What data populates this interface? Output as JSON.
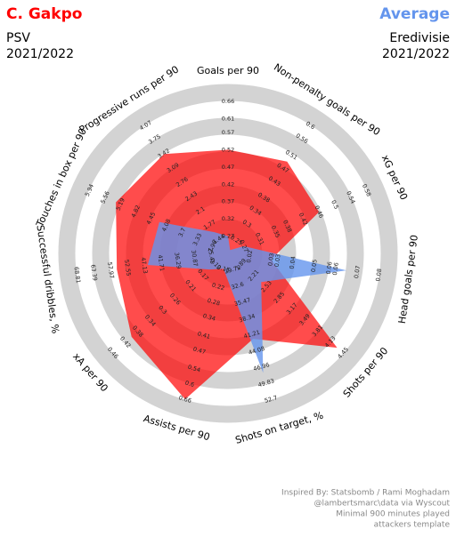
{
  "chart_data": {
    "type": "radar",
    "series": [
      {
        "name": "C. Gakpo",
        "color": "#ff0000",
        "subtitle": [
          "PSV",
          "2021/2022"
        ],
        "values": [
          0.52,
          0.49,
          0.46,
          0.03,
          4.3,
          42,
          0.66,
          0.4,
          56,
          5.3,
          3.41
        ]
      },
      {
        "name": "Average",
        "color": "#6495ed",
        "subtitle": [
          "Eredivisie",
          "2021/2022"
        ],
        "values": [
          0.27,
          0.22,
          0.27,
          0.065,
          2.4,
          48,
          0.15,
          0.15,
          46,
          4.25,
          1.6
        ]
      }
    ],
    "axes": [
      {
        "label": "Goals per 90",
        "lim": [
          0.22,
          0.66
        ],
        "ticks": [
          0.27,
          0.32,
          0.37,
          0.42,
          0.47,
          0.52,
          0.57,
          0.61,
          0.66
        ]
      },
      {
        "label": "Non-penalty goals per 90",
        "lim": [
          0.21,
          0.6
        ],
        "ticks": [
          0.25,
          0.3,
          0.34,
          0.38,
          0.43,
          0.47,
          0.51,
          0.56,
          0.6
        ]
      },
      {
        "label": "xG per 90",
        "lim": [
          0.23,
          0.58
        ],
        "ticks": [
          0.27,
          0.31,
          0.35,
          0.38,
          0.42,
          0.46,
          0.5,
          0.54,
          0.58
        ]
      },
      {
        "label": "Head goals per 90",
        "lim": [
          0.01,
          0.08
        ],
        "ticks": [
          0.02,
          0.03,
          {
            "value": 0.033,
            "label": "0.03"
          },
          0.04,
          0.05,
          {
            "value": 0.057,
            "label": "0.06"
          },
          0.06,
          0.07,
          0.08
        ]
      },
      {
        "label": "Shots per 90",
        "lim": [
          1.57,
          4.45
        ],
        "ticks": [
          1.89,
          2.21,
          2.53,
          2.85,
          3.17,
          3.49,
          3.81,
          4.13,
          4.45
        ]
      },
      {
        "label": "Shots on target, %",
        "lim": [
          26.85,
          52.7
        ],
        "ticks": [
          29.72,
          32.6,
          35.47,
          38.34,
          41.21,
          44.08,
          46.96,
          49.83,
          52.7
        ]
      },
      {
        "label": "Assists per 90",
        "lim": [
          0.09,
          0.66
        ],
        "ticks": [
          0.15,
          0.22,
          0.28,
          0.34,
          0.41,
          0.47,
          0.54,
          0.6,
          0.66
        ]
      },
      {
        "label": "xA per 90",
        "lim": [
          0.09,
          0.46
        ],
        "ticks": [
          0.13,
          0.17,
          0.21,
          0.26,
          0.3,
          0.34,
          0.38,
          0.42,
          0.46
        ]
      },
      {
        "label": "Successful dribbles, %",
        "lim": [
          20.03,
          68.81
        ],
        "ticks": [
          25.45,
          30.87,
          36.29,
          41.71,
          47.13,
          52.55,
          57.97,
          63.39,
          68.81
        ]
      },
      {
        "label": "Touches in box per 90",
        "lim": [
          2.59,
          5.94
        ],
        "ticks": [
          2.96,
          3.33,
          3.7,
          4.08,
          4.45,
          4.82,
          5.19,
          5.56,
          5.94
        ]
      },
      {
        "label": "Progressive runs per 90",
        "lim": [
          1.11,
          4.07
        ],
        "ticks": [
          1.44,
          1.77,
          2.1,
          2.43,
          2.76,
          3.09,
          3.42,
          3.75,
          4.07
        ]
      }
    ],
    "endnote": [
      "Inspired By: Statsbomb / Rami Moghadam",
      "@lambertsmarc\\data via Wyscout",
      "Minimal 900 minutes played",
      "attackers template"
    ]
  }
}
